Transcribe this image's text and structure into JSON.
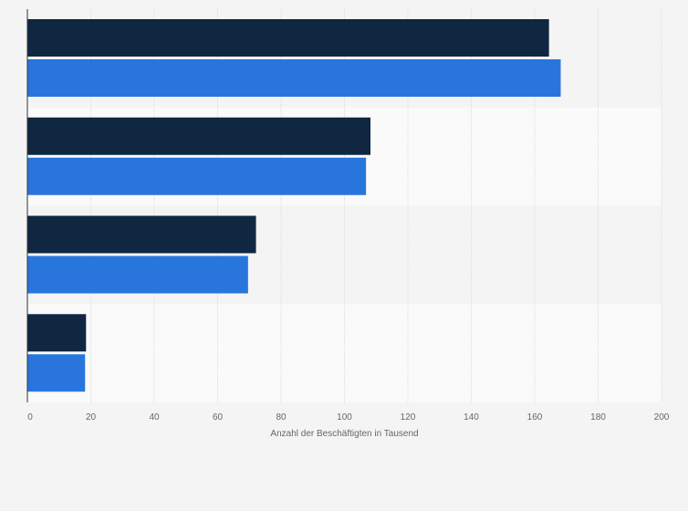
{
  "chart_data": {
    "type": "bar",
    "orientation": "horizontal",
    "title": "",
    "xlabel": "Anzahl der Beschäftigten in Tausend",
    "ylabel": "",
    "xlim": [
      0,
      200
    ],
    "x_ticks": [
      0,
      20,
      40,
      60,
      80,
      100,
      120,
      140,
      160,
      180,
      200
    ],
    "grid": true,
    "legend": "none",
    "categories": [
      "",
      "",
      "",
      ""
    ],
    "series": [
      {
        "values": [
          164.5,
          108.2,
          72.1,
          18.5
        ],
        "color": "#0f2741"
      },
      {
        "values": [
          168.2,
          106.8,
          69.6,
          18.2
        ],
        "color": "#2876dd"
      }
    ]
  }
}
